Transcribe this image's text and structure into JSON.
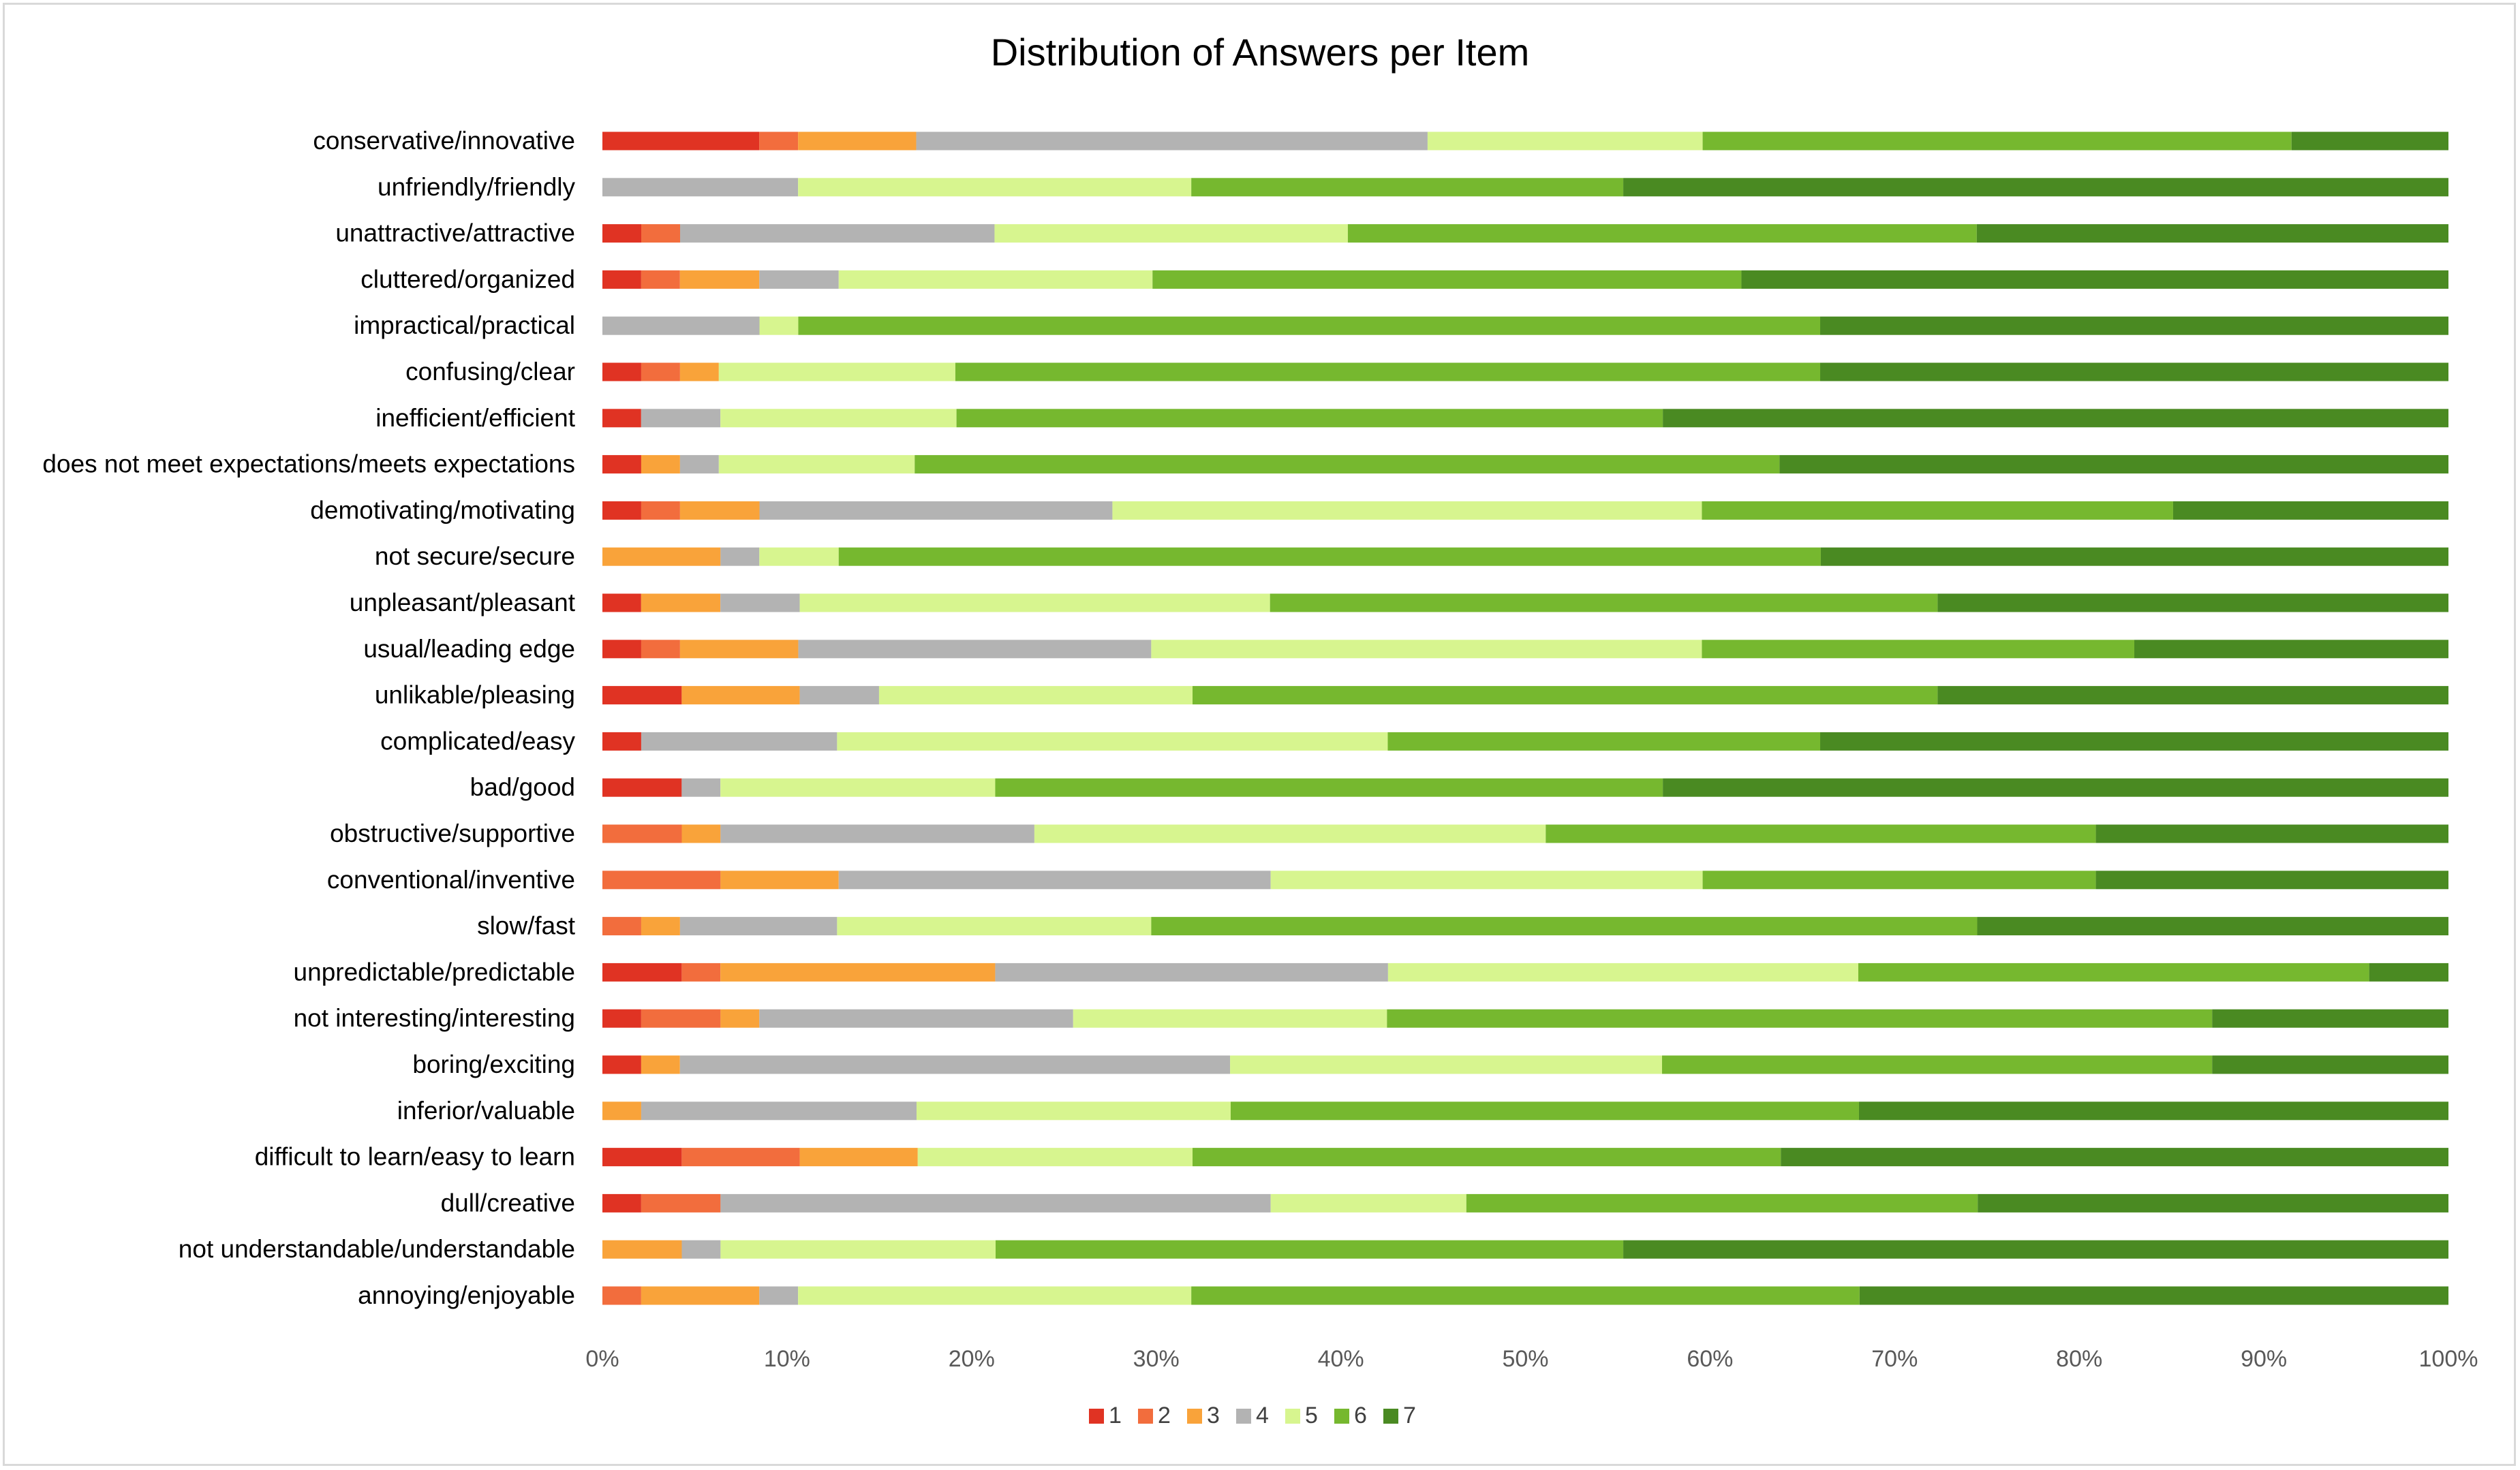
{
  "chart_data": {
    "type": "bar",
    "orientation": "horizontal",
    "stacked": "100%",
    "title": "Distribution of Answers per Item",
    "xlabel": "",
    "ylabel": "",
    "xlim": [
      0,
      100
    ],
    "x_ticks": [
      "0%",
      "10%",
      "20%",
      "30%",
      "40%",
      "50%",
      "60%",
      "70%",
      "80%",
      "90%",
      "100%"
    ],
    "grid": false,
    "legend_position": "bottom",
    "categories": [
      "conservative/innovative",
      "unfriendly/friendly",
      "unattractive/attractive",
      "cluttered/organized",
      "impractical/practical",
      "confusing/clear",
      "inefficient/efficient",
      "does not meet expectations/meets expectations",
      "demotivating/motivating",
      "not secure/secure",
      "unpleasant/pleasant",
      "usual/leading edge",
      "unlikable/pleasing",
      "complicated/easy",
      "bad/good",
      "obstructive/supportive",
      "conventional/inventive",
      "slow/fast",
      "unpredictable/predictable",
      "not interesting/interesting",
      "boring/exciting",
      "inferior/valuable",
      "difficult to learn/easy to learn",
      "dull/creative",
      "not understandable/understandable",
      "annoying/enjoyable"
    ],
    "series": [
      {
        "name": "1",
        "color": "#e03323",
        "values": [
          8.5,
          0,
          2.1,
          2.1,
          0,
          2.1,
          2.1,
          2.1,
          2.1,
          0,
          2.1,
          2.1,
          4.3,
          2.1,
          4.3,
          0,
          0,
          0,
          4.3,
          2.1,
          2.1,
          0,
          4.3,
          2.1,
          0,
          0
        ]
      },
      {
        "name": "2",
        "color": "#f26d3d",
        "values": [
          2.1,
          0,
          2.1,
          2.1,
          0,
          2.1,
          0,
          0,
          2.1,
          0,
          0,
          2.1,
          0,
          0,
          0,
          4.3,
          6.4,
          2.1,
          2.1,
          4.3,
          0,
          0,
          6.4,
          4.3,
          0,
          2.1
        ]
      },
      {
        "name": "3",
        "color": "#f9a33a",
        "values": [
          6.4,
          0,
          0,
          4.3,
          0,
          2.1,
          0,
          2.1,
          4.3,
          6.4,
          4.3,
          6.4,
          6.4,
          0,
          0,
          2.1,
          6.4,
          2.1,
          14.9,
          2.1,
          2.1,
          2.1,
          6.4,
          0,
          4.3,
          6.4
        ]
      },
      {
        "name": "4",
        "color": "#b3b3b3",
        "values": [
          27.7,
          10.6,
          17.0,
          4.3,
          8.5,
          0,
          4.3,
          2.1,
          19.1,
          2.1,
          4.3,
          19.1,
          4.3,
          10.6,
          2.1,
          17.0,
          23.4,
          8.5,
          21.3,
          17.0,
          29.8,
          14.9,
          0,
          29.8,
          2.1,
          2.1
        ]
      },
      {
        "name": "5",
        "color": "#d7f58f",
        "values": [
          14.9,
          21.3,
          19.1,
          17.0,
          2.1,
          12.8,
          12.8,
          10.6,
          31.9,
          4.3,
          25.5,
          29.8,
          17.0,
          29.8,
          14.9,
          27.7,
          23.4,
          17.0,
          25.5,
          17.0,
          23.4,
          17.0,
          14.9,
          10.6,
          14.9,
          21.3
        ]
      },
      {
        "name": "6",
        "color": "#76b82f",
        "values": [
          31.9,
          23.4,
          34.0,
          31.9,
          55.3,
          46.8,
          38.3,
          46.8,
          25.5,
          53.2,
          36.2,
          23.4,
          40.4,
          23.4,
          36.2,
          29.8,
          21.3,
          44.7,
          27.7,
          44.7,
          29.8,
          34.0,
          31.9,
          27.7,
          34.0,
          36.2
        ]
      },
      {
        "name": "7",
        "color": "#4a8a22",
        "values": [
          8.5,
          44.7,
          25.5,
          38.3,
          34.0,
          34.0,
          42.6,
          36.2,
          14.9,
          34.0,
          27.7,
          17.0,
          27.7,
          34.0,
          42.6,
          19.1,
          19.1,
          25.5,
          4.3,
          12.8,
          12.8,
          31.9,
          36.2,
          25.5,
          44.7,
          31.9
        ]
      }
    ]
  }
}
